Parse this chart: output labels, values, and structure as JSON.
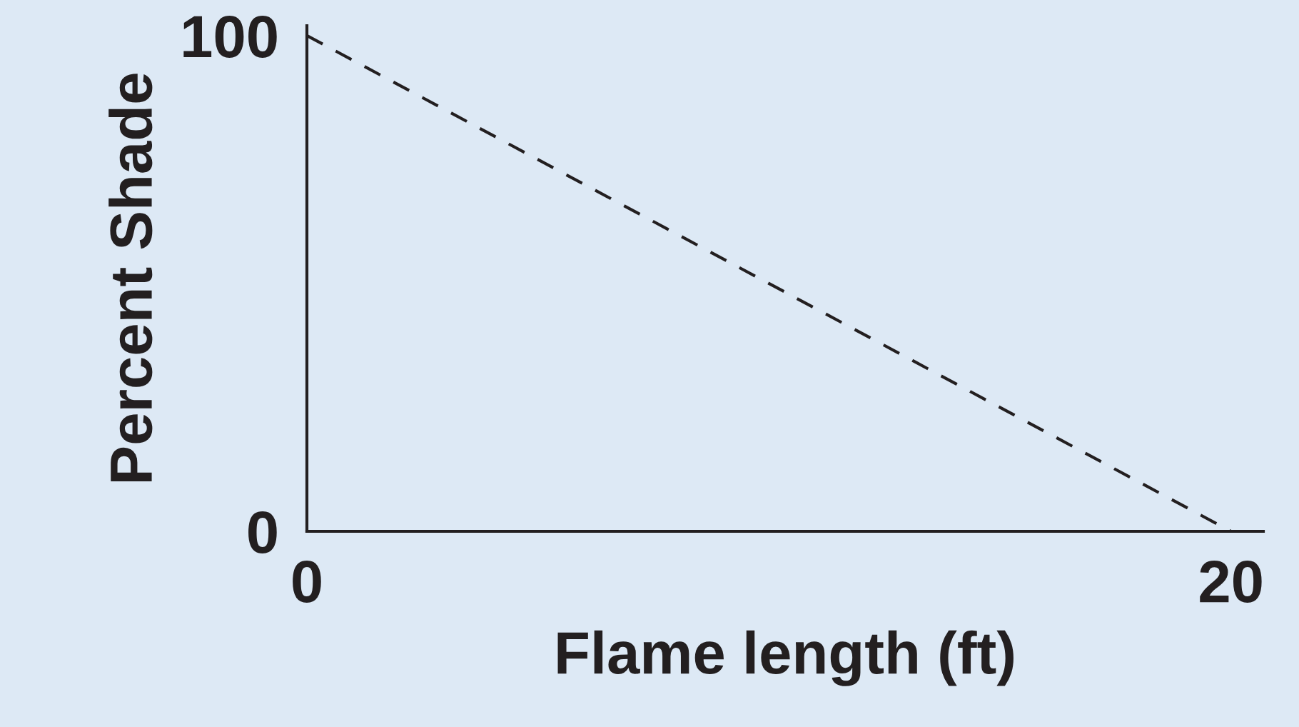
{
  "chart_data": {
    "type": "line",
    "xlabel": "Flame length (ft)",
    "ylabel": "Percent Shade",
    "x": [
      0,
      20
    ],
    "series": [
      {
        "color": "#231f20",
        "values": [
          100,
          0
        ],
        "line_style": "dashed"
      }
    ],
    "xlim": [
      0,
      20.7
    ],
    "ylim": [
      0,
      102
    ],
    "xticks": [
      0,
      20
    ],
    "yticks": [
      0,
      100
    ],
    "grid": false,
    "legend": false,
    "marker": "none"
  }
}
